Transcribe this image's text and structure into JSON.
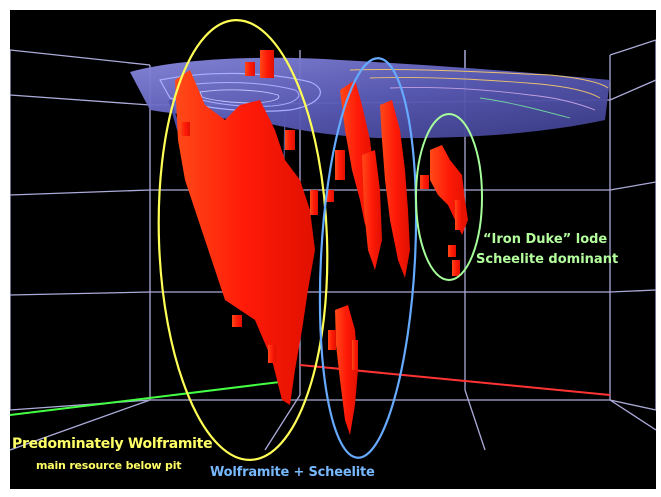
{
  "labels": {
    "wolframite_title": "Predominately Wolframite",
    "wolframite_sub": "main resource below pit",
    "mixed": "Wolframite + Scheelite",
    "iron_duke_title": "“Iron Duke” lode",
    "iron_duke_sub": "Scheelite dominant"
  },
  "colors": {
    "background": "#000000",
    "grid": "#c9c9ff",
    "pit_surface": "#6f70c8",
    "ore_blocks": "#ff2a10",
    "ellipse_wolframite": "#ffff55",
    "ellipse_mixed": "#66aaff",
    "ellipse_iron_duke": "#a6ff9a",
    "text_wolframite": "#ffff66",
    "text_mixed": "#77b8ff",
    "text_iron_duke": "#b4ff9e",
    "axis_x": "#ff3333",
    "axis_z": "#44ff44"
  }
}
